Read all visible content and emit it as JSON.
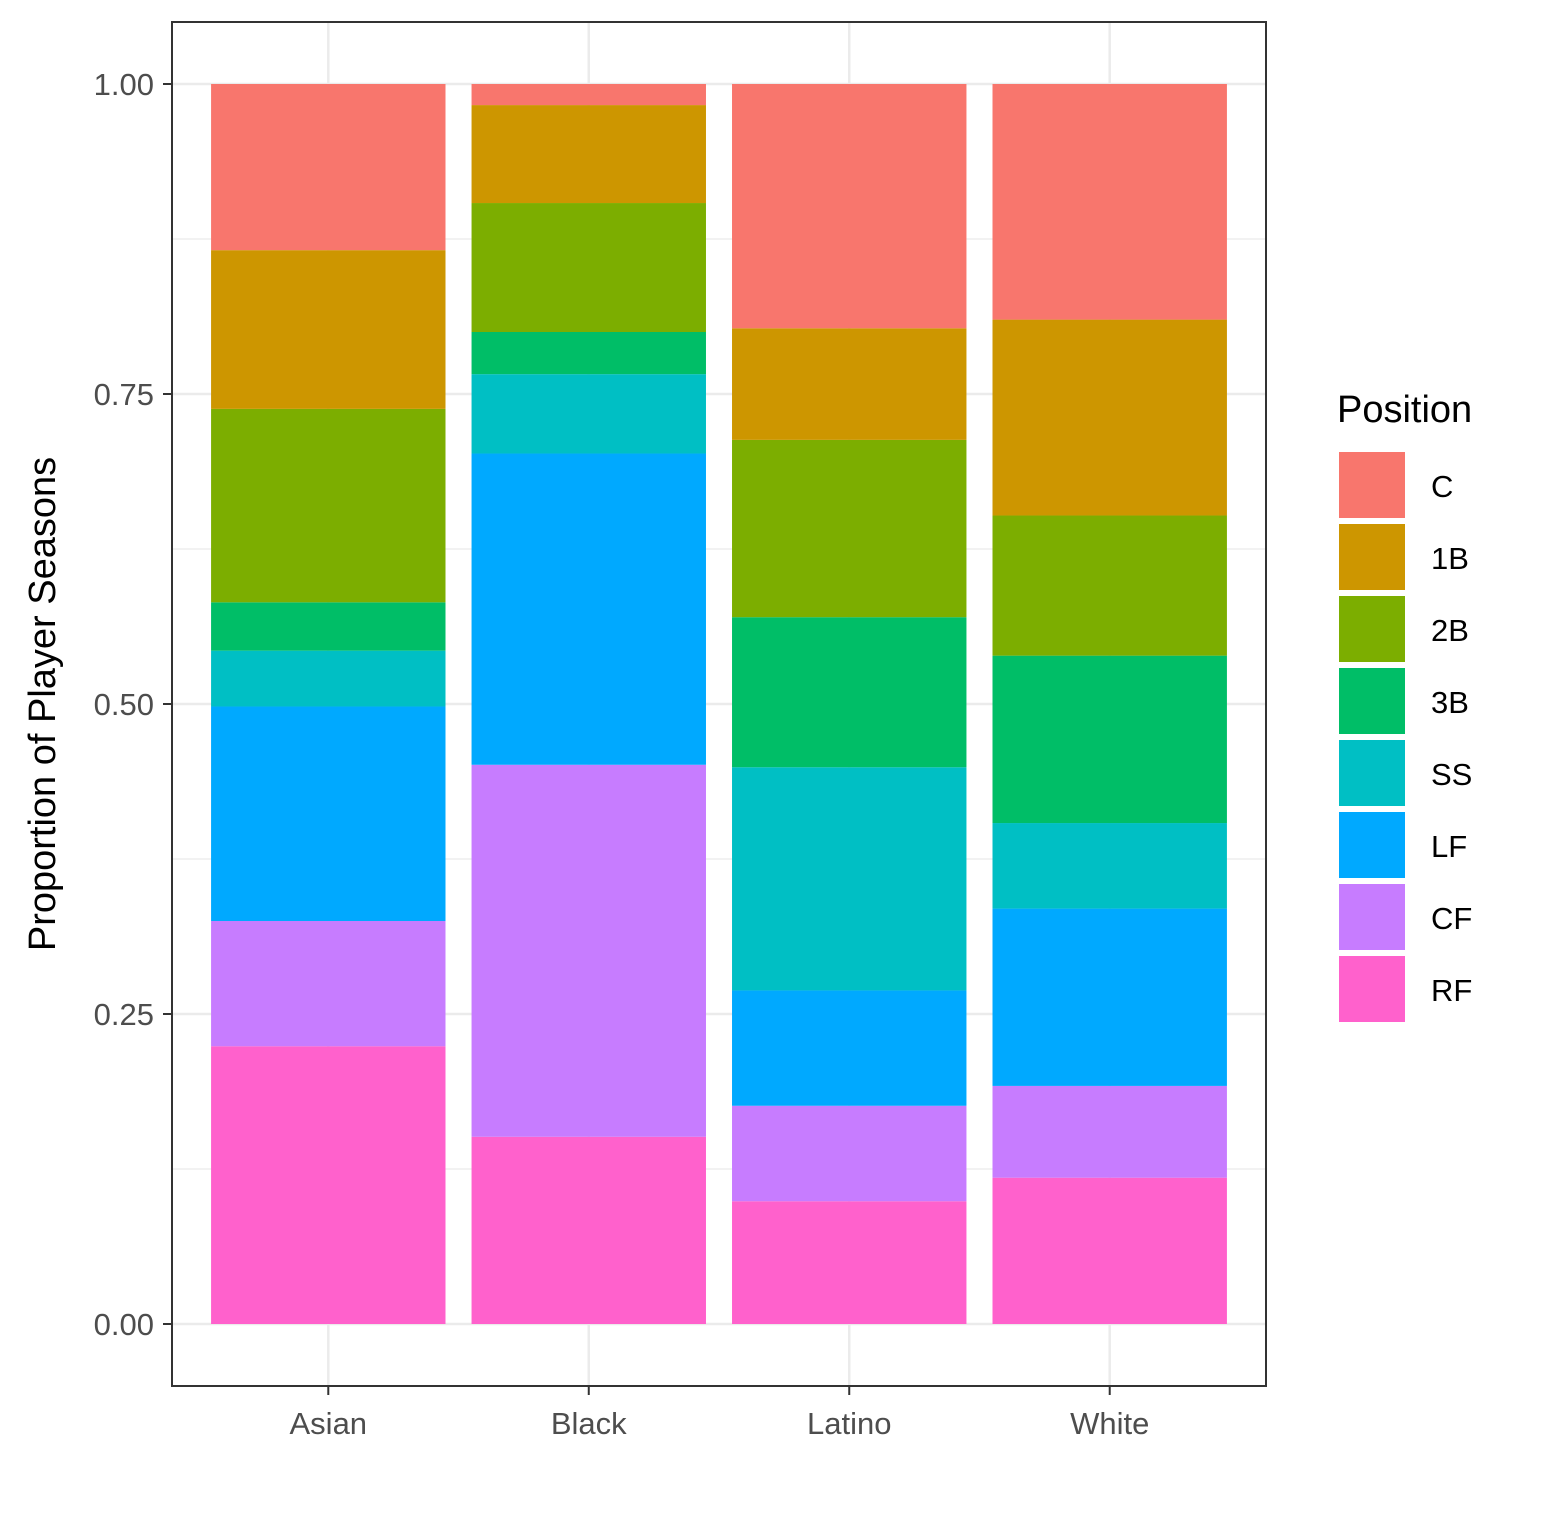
{
  "chart_data": {
    "type": "bar",
    "stacked": true,
    "normalized": true,
    "title": "",
    "xlabel": "",
    "ylabel": "Proportion of Player Seasons",
    "ylim": [
      -0.05,
      1.05
    ],
    "yticks": [
      0.0,
      0.25,
      0.5,
      0.75,
      1.0
    ],
    "ytick_labels": [
      "0.00",
      "0.25",
      "0.50",
      "0.75",
      "1.00"
    ],
    "categories": [
      "Asian",
      "Black",
      "Latino",
      "White"
    ],
    "grid": true,
    "legend": {
      "title": "Position",
      "placement": "right"
    },
    "series": [
      {
        "name": "C",
        "color": "#F8766D",
        "values": [
          0.134,
          0.017,
          0.197,
          0.19
        ]
      },
      {
        "name": "1B",
        "color": "#CD9600",
        "values": [
          0.128,
          0.079,
          0.09,
          0.158
        ]
      },
      {
        "name": "2B",
        "color": "#7CAE00",
        "values": [
          0.156,
          0.104,
          0.143,
          0.113
        ]
      },
      {
        "name": "3B",
        "color": "#00BE67",
        "values": [
          0.039,
          0.034,
          0.121,
          0.135
        ]
      },
      {
        "name": "SS",
        "color": "#00BFC4",
        "values": [
          0.045,
          0.064,
          0.18,
          0.069
        ]
      },
      {
        "name": "LF",
        "color": "#00A9FF",
        "values": [
          0.173,
          0.251,
          0.093,
          0.143
        ]
      },
      {
        "name": "CF",
        "color": "#C77CFF",
        "values": [
          0.101,
          0.3,
          0.077,
          0.074
        ]
      },
      {
        "name": "RF",
        "color": "#FF61CC",
        "values": [
          0.224,
          0.151,
          0.099,
          0.118
        ]
      }
    ]
  }
}
